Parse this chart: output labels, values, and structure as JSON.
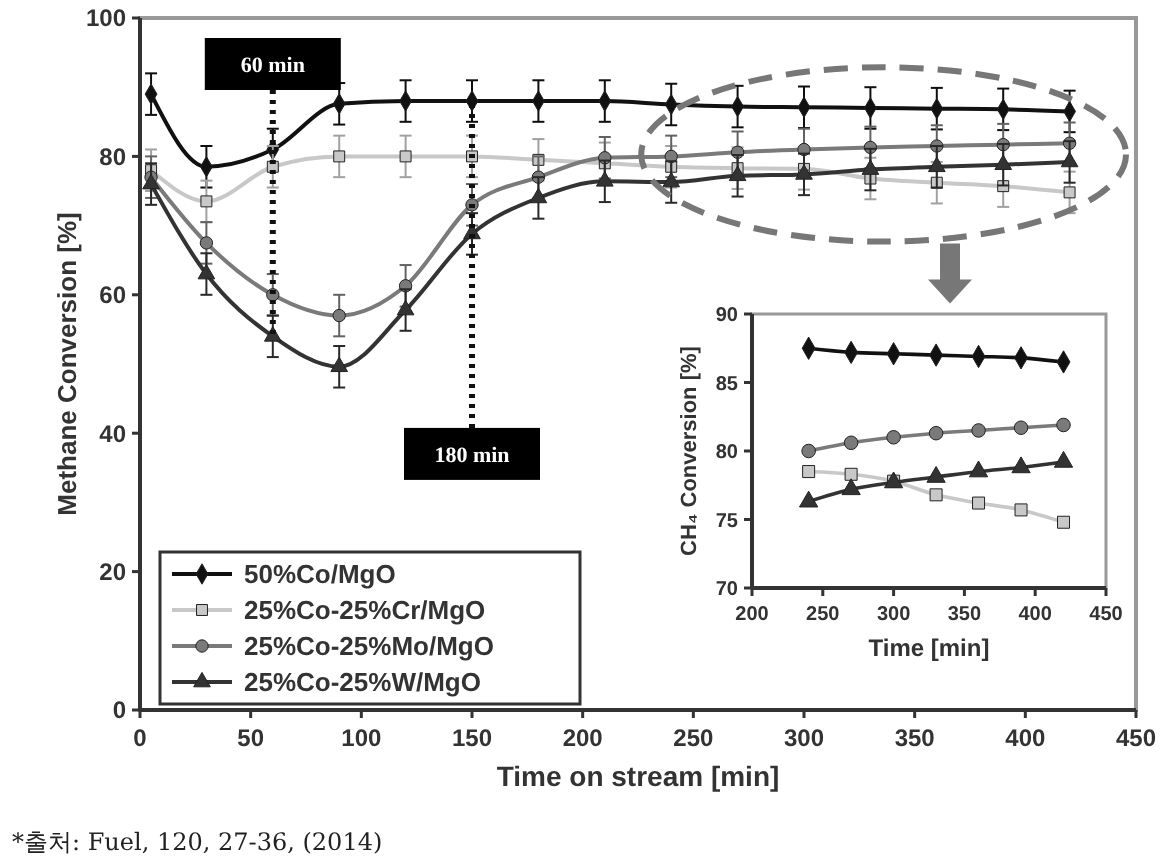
{
  "chart_data": [
    {
      "type": "line",
      "xlabel": "Time on stream [min]",
      "ylabel": "Methane Conversion [%]",
      "x": [
        5,
        30,
        60,
        90,
        120,
        150,
        180,
        210,
        240,
        270,
        300,
        330,
        360,
        390,
        420
      ],
      "xlim": [
        0,
        450
      ],
      "xticks": [
        0,
        50,
        100,
        150,
        200,
        250,
        300,
        350,
        400,
        450
      ],
      "ylim": [
        0,
        100
      ],
      "yticks": [
        0,
        20,
        40,
        60,
        80,
        100
      ],
      "legend": "bottom left",
      "series": [
        {
          "name": "50%Co/MgO",
          "color": "#111111",
          "marker": "diamond",
          "values": [
            89,
            78.5,
            81,
            87.6,
            88,
            88,
            88,
            88,
            87.5,
            87.2,
            87.1,
            87,
            86.9,
            86.8,
            86.5
          ],
          "errors": [
            3,
            3,
            3,
            3,
            3,
            3,
            3,
            3,
            3,
            3,
            3,
            3,
            3,
            3,
            3
          ]
        },
        {
          "name": "25%Co-25%Cr/MgO",
          "color": "#c8c8c8",
          "marker": "square",
          "values": [
            78,
            73.5,
            78.5,
            80,
            80,
            80,
            79.5,
            79,
            78.5,
            78.3,
            78.2,
            76.8,
            76.2,
            75.7,
            74.8
          ],
          "errors": [
            3,
            3,
            3,
            3,
            3,
            3,
            3,
            3,
            3,
            3,
            3,
            3,
            3,
            3,
            3
          ]
        },
        {
          "name": "25%Co-25%Mo/MgO",
          "color": "#7a7a7a",
          "marker": "circle",
          "values": [
            77,
            67.5,
            60,
            57,
            61.3,
            73,
            77,
            79.8,
            80,
            80.6,
            81,
            81.3,
            81.5,
            81.7,
            81.9
          ],
          "errors": [
            3,
            3,
            3,
            3,
            3,
            3,
            3,
            3,
            3,
            3,
            3,
            3,
            3,
            3,
            3
          ]
        },
        {
          "name": "25%Co-25%W/MgO",
          "color": "#333333",
          "marker": "triangle",
          "values": [
            76,
            63,
            54,
            49.6,
            57.8,
            68.8,
            74,
            76.4,
            76.3,
            77.2,
            77.4,
            78.1,
            78.5,
            78.8,
            79.2
          ],
          "errors": [
            3,
            3,
            3,
            3,
            3,
            3,
            3,
            3,
            3,
            3,
            3,
            3,
            3,
            3,
            3
          ]
        }
      ],
      "ref_lines": [
        {
          "axis": "x",
          "value": 60,
          "label": "60 min",
          "line_style": "dotted"
        },
        {
          "axis": "x",
          "value": 150,
          "label": "180 min",
          "line_style": "dotted"
        }
      ],
      "annotations": [
        "*출처: Fuel, 120, 27-36, (2014)"
      ]
    },
    {
      "type": "line",
      "xlabel": "Time [min]",
      "ylabel": "CH₄ Conversion [%]",
      "x": [
        240,
        270,
        300,
        330,
        360,
        390,
        420
      ],
      "xlim": [
        200,
        450
      ],
      "xticks": [
        200,
        250,
        300,
        350,
        400,
        450
      ],
      "ylim": [
        70,
        90
      ],
      "yticks": [
        70,
        75,
        80,
        85,
        90
      ],
      "series": [
        {
          "color": "#111111",
          "marker": "diamond",
          "values": [
            87.5,
            87.2,
            87.1,
            87,
            86.9,
            86.8,
            86.5
          ]
        },
        {
          "color": "#c8c8c8",
          "marker": "square",
          "values": [
            78.5,
            78.3,
            77.8,
            76.8,
            76.2,
            75.7,
            74.8
          ]
        },
        {
          "color": "#7a7a7a",
          "marker": "circle",
          "values": [
            80,
            80.6,
            81,
            81.3,
            81.5,
            81.7,
            81.9
          ]
        },
        {
          "color": "#333333",
          "marker": "triangle",
          "values": [
            76.3,
            77.2,
            77.7,
            78.1,
            78.5,
            78.8,
            79.2
          ]
        }
      ]
    }
  ]
}
